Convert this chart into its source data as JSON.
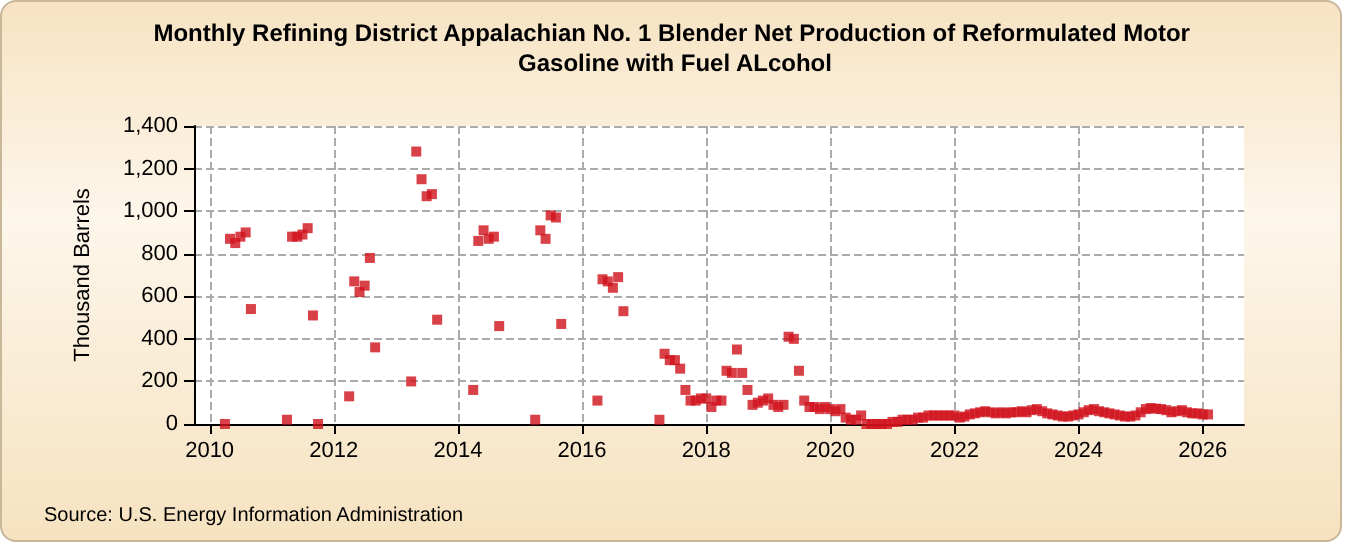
{
  "chart_data": {
    "type": "scatter",
    "title": "Monthly Refining District Appalachian No. 1 Blender Net Production of Reformulated Motor Gasoline with Fuel ALcohol",
    "ylabel": "Thousand Barrels",
    "annotations": [
      "Source: U.S. Energy Information Administration"
    ],
    "x": [
      "2010-04",
      "2010-05",
      "2010-06",
      "2010-07",
      "2010-08",
      "2010-09",
      "2011-04",
      "2011-05",
      "2011-06",
      "2011-07",
      "2011-08",
      "2011-09",
      "2011-10",
      "2012-04",
      "2012-05",
      "2012-06",
      "2012-07",
      "2012-08",
      "2012-09",
      "2013-04",
      "2013-05",
      "2013-06",
      "2013-07",
      "2013-08",
      "2013-09",
      "2014-04",
      "2014-05",
      "2014-06",
      "2014-07",
      "2014-08",
      "2014-09",
      "2015-04",
      "2015-05",
      "2015-06",
      "2015-07",
      "2015-08",
      "2015-09",
      "2016-04",
      "2016-05",
      "2016-06",
      "2016-07",
      "2016-08",
      "2016-09",
      "2017-04",
      "2017-05",
      "2017-06",
      "2017-07",
      "2017-08",
      "2017-09",
      "2017-10",
      "2017-11",
      "2017-12",
      "2018-01",
      "2018-02",
      "2018-03",
      "2018-04",
      "2018-05",
      "2018-06",
      "2018-07",
      "2018-08",
      "2018-09",
      "2018-10",
      "2018-11",
      "2018-12",
      "2019-01",
      "2019-02",
      "2019-03",
      "2019-04",
      "2019-05",
      "2019-06",
      "2019-07",
      "2019-08",
      "2019-09",
      "2019-10",
      "2019-11",
      "2019-12",
      "2020-01",
      "2020-02",
      "2020-03",
      "2020-04",
      "2020-05",
      "2020-06",
      "2020-07",
      "2020-08",
      "2020-09",
      "2020-10",
      "2020-11",
      "2020-12",
      "2021-01",
      "2021-02",
      "2021-03",
      "2021-04",
      "2021-05",
      "2021-06",
      "2021-07",
      "2021-08",
      "2021-09",
      "2021-10",
      "2021-11",
      "2021-12",
      "2022-01",
      "2022-02",
      "2022-03",
      "2022-04",
      "2022-05",
      "2022-06",
      "2022-07",
      "2022-08",
      "2022-09",
      "2022-10",
      "2022-11",
      "2022-12",
      "2023-01",
      "2023-02",
      "2023-03",
      "2023-04",
      "2023-05",
      "2023-06",
      "2023-07",
      "2023-08",
      "2023-09",
      "2023-10",
      "2023-11",
      "2023-12",
      "2024-01",
      "2024-02",
      "2024-03",
      "2024-04",
      "2024-05",
      "2024-06",
      "2024-07",
      "2024-08",
      "2024-09",
      "2024-10",
      "2024-11",
      "2024-12",
      "2025-01",
      "2025-02",
      "2025-03",
      "2025-04",
      "2025-05",
      "2025-06",
      "2025-07",
      "2025-08",
      "2025-09",
      "2025-10",
      "2025-11",
      "2025-12",
      "2026-01",
      "2026-02"
    ],
    "series": [
      {
        "color": "#d0121b",
        "values": [
          0,
          870,
          850,
          880,
          900,
          540,
          20,
          880,
          880,
          890,
          920,
          510,
          0,
          130,
          670,
          620,
          650,
          780,
          360,
          200,
          1280,
          1150,
          1070,
          1080,
          490,
          160,
          860,
          910,
          870,
          880,
          460,
          20,
          910,
          870,
          980,
          970,
          470,
          110,
          680,
          670,
          640,
          690,
          530,
          20,
          330,
          300,
          300,
          260,
          160,
          110,
          110,
          120,
          120,
          80,
          110,
          110,
          250,
          240,
          350,
          240,
          160,
          90,
          100,
          110,
          120,
          90,
          80,
          90,
          410,
          400,
          250,
          110,
          80,
          80,
          70,
          80,
          70,
          60,
          70,
          30,
          20,
          20,
          40,
          0,
          0,
          0,
          0,
          0,
          10,
          10,
          20,
          20,
          20,
          30,
          30,
          40,
          40,
          40,
          40,
          40,
          40,
          30,
          35,
          45,
          50,
          55,
          60,
          55,
          50,
          55,
          50,
          55,
          55,
          60,
          55,
          65,
          70,
          60,
          50,
          45,
          40,
          35,
          35,
          40,
          45,
          55,
          65,
          70,
          60,
          55,
          50,
          45,
          40,
          35,
          35,
          40,
          55,
          70,
          75,
          72,
          70,
          65,
          55,
          60,
          65,
          55,
          50,
          50,
          45,
          45
        ]
      }
    ],
    "xlim": [
      "2009-10",
      "2026-09"
    ],
    "xticks": [
      "2010",
      "2012",
      "2014",
      "2016",
      "2018",
      "2020",
      "2022",
      "2024",
      "2026"
    ],
    "ylim": [
      0,
      1400
    ],
    "yticks": [
      0,
      200,
      400,
      600,
      800,
      {
        "value": 1000,
        "label": "1,000"
      },
      {
        "value": 1200,
        "label": "1,200"
      },
      {
        "value": 1400,
        "label": "1,400"
      }
    ],
    "grid": true,
    "marker": "square"
  }
}
